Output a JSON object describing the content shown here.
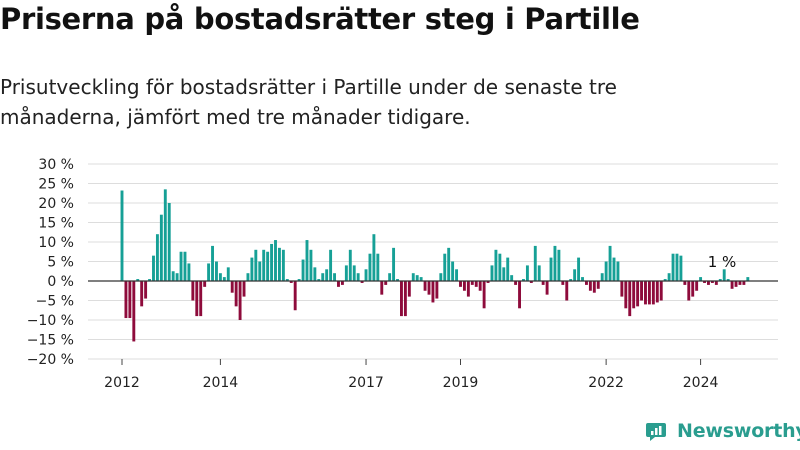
{
  "title": "Priserna på bostadsrätter steg i Partille",
  "subtitle": "Prisutveckling för bostadsrätter i Partille under de senaste tre månaderna, jämfört med tre månader tidigare.",
  "brand": {
    "name": "Newsworthy",
    "color": "#2a9d8f",
    "icon": "newsworthy-logo-icon"
  },
  "chart_data": {
    "type": "bar",
    "ylabel": "",
    "xlabel": "",
    "ylim": [
      -20,
      30
    ],
    "y_ticks": [
      30,
      25,
      20,
      15,
      10,
      5,
      0,
      -5,
      -10,
      -15,
      -20
    ],
    "y_tick_labels": [
      "30 %",
      "25 %",
      "20 %",
      "15 %",
      "10 %",
      "5 %",
      "0 %",
      "−5 %",
      "−10 %",
      "−15 %",
      "−20 %"
    ],
    "x_tick_labels": [
      {
        "label": "2012",
        "index": 0
      },
      {
        "label": "2014",
        "index": 25
      },
      {
        "label": "2017",
        "index": 62
      },
      {
        "label": "2019",
        "index": 86
      },
      {
        "label": "2022",
        "index": 123
      },
      {
        "label": "2024",
        "index": 147
      }
    ],
    "grid": true,
    "colors": {
      "positive": "#16a096",
      "negative": "#8e0b3b",
      "grid": "#dddddd",
      "zero_line": "#333333"
    },
    "annotation": {
      "label": "1 %",
      "index": 156
    },
    "values": [
      23.2,
      -9.5,
      -9.5,
      -15.5,
      0.5,
      -6.5,
      -4.5,
      0.5,
      6.5,
      12,
      17,
      23.5,
      20,
      2.5,
      2,
      7.5,
      7.5,
      4.5,
      -5,
      -9,
      -9,
      -1.5,
      4.5,
      9,
      5,
      2,
      1,
      3.5,
      -3,
      -6.5,
      -10,
      -4,
      2,
      6,
      8,
      5,
      8,
      7.5,
      9.5,
      10.5,
      8.5,
      8,
      0.5,
      -0.5,
      -7.5,
      0.5,
      5.5,
      10.5,
      8,
      3.5,
      0.5,
      2,
      3,
      8,
      2,
      -1.5,
      -1,
      4,
      8,
      4,
      2,
      -0.5,
      3,
      7,
      12,
      7,
      -3.5,
      -1,
      2,
      8.5,
      0.5,
      -9,
      -9,
      -4,
      2,
      1.5,
      1,
      -2.5,
      -3.5,
      -5.5,
      -4.5,
      2,
      7,
      8.5,
      5,
      3,
      -1.5,
      -2.5,
      -4,
      -1,
      -1.5,
      -2.5,
      -7,
      -0.5,
      4,
      8,
      7,
      3.5,
      6,
      1.5,
      -1,
      -7,
      0.5,
      4,
      -0.5,
      9,
      4,
      -1,
      -3.5,
      6,
      9,
      8,
      -1,
      -5,
      0.5,
      3,
      6,
      1,
      -1,
      -2.5,
      -3,
      -2,
      2,
      5,
      9,
      6,
      5,
      -4,
      -7,
      -9,
      -7,
      -6.5,
      -5,
      -6,
      -6,
      -6,
      -5.5,
      -5,
      0.5,
      2,
      7,
      7,
      6.5,
      -1,
      -5,
      -4,
      -2.5,
      1,
      -0.5,
      -1,
      -0.5,
      -1,
      0.5,
      3,
      0.5,
      -2,
      -1.5,
      -1,
      -1,
      1
    ]
  }
}
